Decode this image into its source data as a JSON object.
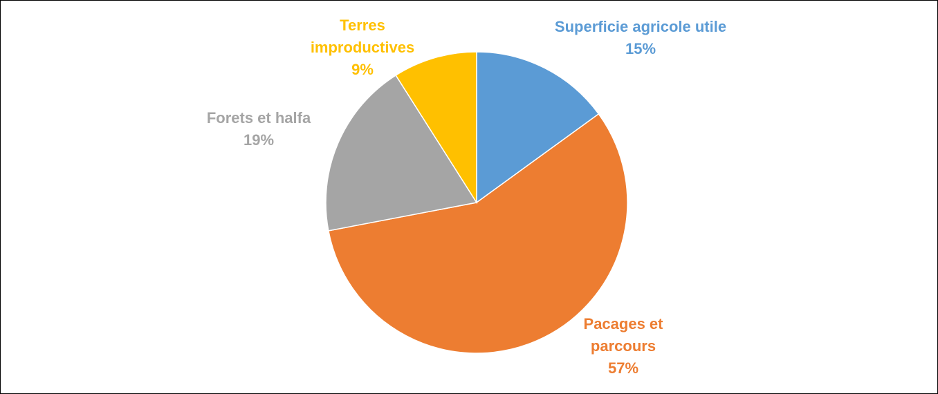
{
  "chart_data": {
    "type": "pie",
    "categories": [
      "Superficie agricole utile",
      "Pacages et parcours",
      "Forets et halfa",
      "Terres improductives"
    ],
    "values": [
      15,
      57,
      19,
      9
    ],
    "value_labels": [
      "15%",
      "57%",
      "19%",
      "9%"
    ],
    "colors": [
      "#5b9bd5",
      "#ed7d31",
      "#a5a5a5",
      "#ffc000"
    ]
  }
}
